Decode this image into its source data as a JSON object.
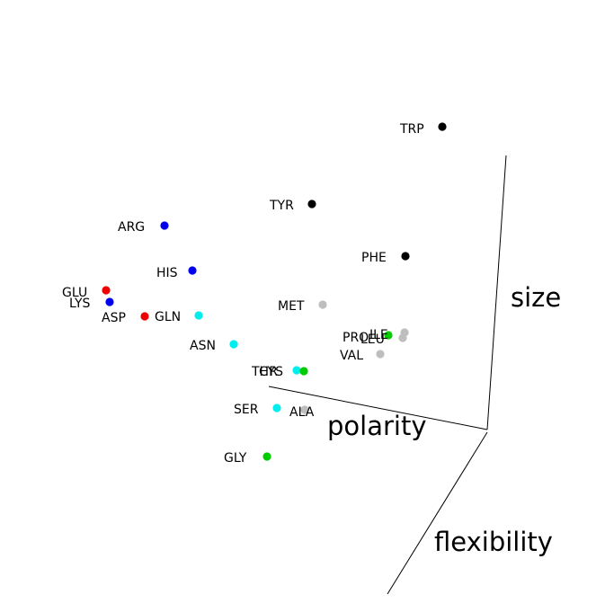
{
  "chart_data": {
    "type": "scatter",
    "title": "",
    "axes": {
      "x": "polarity",
      "y": "flexibility",
      "z": "size"
    },
    "legend": "none",
    "colors": {
      "black": "#000000",
      "blue": "#0000ee",
      "red": "#ee0000",
      "cyan": "#00eeee",
      "gray": "#bebebe",
      "green": "#00cd00"
    },
    "points": [
      {
        "label": "TRP",
        "color": "black"
      },
      {
        "label": "TYR",
        "color": "black"
      },
      {
        "label": "PHE",
        "color": "black"
      },
      {
        "label": "ARG",
        "color": "blue"
      },
      {
        "label": "HIS",
        "color": "blue"
      },
      {
        "label": "LYS",
        "color": "blue"
      },
      {
        "label": "GLU",
        "color": "red"
      },
      {
        "label": "ASP",
        "color": "red"
      },
      {
        "label": "GLN",
        "color": "cyan"
      },
      {
        "label": "ASN",
        "color": "cyan"
      },
      {
        "label": "THR",
        "color": "cyan"
      },
      {
        "label": "SER",
        "color": "cyan"
      },
      {
        "label": "MET",
        "color": "gray"
      },
      {
        "label": "ILE",
        "color": "gray"
      },
      {
        "label": "LEU",
        "color": "gray"
      },
      {
        "label": "VAL",
        "color": "gray"
      },
      {
        "label": "ALA",
        "color": "gray"
      },
      {
        "label": "PRO",
        "color": "green"
      },
      {
        "label": "CYS",
        "color": "green"
      },
      {
        "label": "GLY",
        "color": "green"
      }
    ]
  }
}
